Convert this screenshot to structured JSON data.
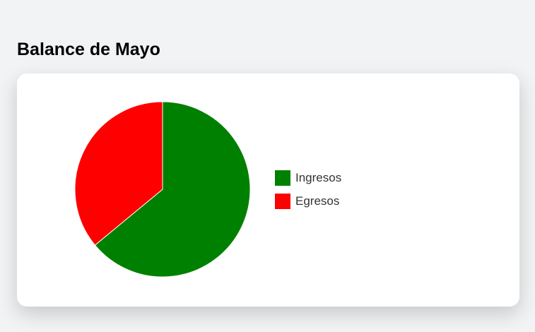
{
  "page": {
    "title": "Balance de Mayo"
  },
  "chart_data": {
    "type": "pie",
    "title": "",
    "legend_position": "right",
    "slice_border_color": "#ffffff",
    "start_angle_degrees": 0,
    "direction": "clockwise",
    "slices": [
      {
        "label": "Ingresos",
        "value": 64,
        "color": "#008000"
      },
      {
        "label": "Egresos",
        "value": 36,
        "color": "#ff0000"
      }
    ]
  }
}
